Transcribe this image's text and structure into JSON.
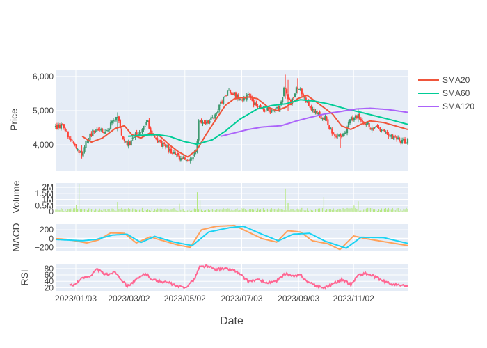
{
  "chart_data": {
    "type": "candlestick",
    "xlabel": "Date",
    "x_range": [
      "2022-12-12",
      "2023-12-31"
    ],
    "x_ticks": [
      {
        "date": "2023-01-03",
        "label": "2023/01/03"
      },
      {
        "date": "2023-03-02",
        "label": "2023/03/02"
      },
      {
        "date": "2023-05-02",
        "label": "2023/05/02"
      },
      {
        "date": "2023-07-03",
        "label": "2023/07/03"
      },
      {
        "date": "2023-09-03",
        "label": "2023/09/03"
      },
      {
        "date": "2023-11-02",
        "label": "2023/11/02"
      }
    ],
    "colors": {
      "up": "#3d9970",
      "down": "#ff4136",
      "sma20": "#ef553b",
      "sma60": "#00cc96",
      "sma120": "#ab63fa",
      "volume": "#b6e880",
      "macd": "#ffa15a",
      "signal": "#19d3f3",
      "rsi": "#ff6692",
      "plot_bg": "#e5ecf6"
    },
    "legend": {
      "position": "top-right",
      "entries": [
        {
          "name": "SMA20",
          "color": "#ef553b"
        },
        {
          "name": "SMA60",
          "color": "#00cc96"
        },
        {
          "name": "SMA120",
          "color": "#ab63fa"
        }
      ]
    },
    "panels": {
      "price": {
        "ylabel": "Price",
        "ylim": [
          3250,
          6200
        ],
        "y_ticks": [
          {
            "v": 4000,
            "label": "4,000"
          },
          {
            "v": 5000,
            "label": "5,000"
          },
          {
            "v": 6000,
            "label": "6,000"
          }
        ],
        "close_anchors": [
          [
            "2022-12-12",
            4500
          ],
          [
            "2022-12-20",
            4600
          ],
          [
            "2022-12-27",
            4150
          ],
          [
            "2023-01-03",
            4000
          ],
          [
            "2023-01-10",
            3680
          ],
          [
            "2023-01-15",
            4150
          ],
          [
            "2023-01-25",
            4500
          ],
          [
            "2023-02-05",
            4400
          ],
          [
            "2023-02-12",
            4650
          ],
          [
            "2023-02-17",
            4900
          ],
          [
            "2023-02-22",
            4350
          ],
          [
            "2023-02-28",
            3950
          ],
          [
            "2023-03-08",
            4250
          ],
          [
            "2023-03-18",
            4450
          ],
          [
            "2023-03-22",
            4700
          ],
          [
            "2023-03-28",
            4250
          ],
          [
            "2023-04-05",
            4050
          ],
          [
            "2023-04-15",
            3850
          ],
          [
            "2023-04-25",
            3650
          ],
          [
            "2023-05-02",
            3550
          ],
          [
            "2023-05-08",
            3600
          ],
          [
            "2023-05-15",
            3850
          ],
          [
            "2023-05-17",
            4700
          ],
          [
            "2023-05-25",
            4650
          ],
          [
            "2023-06-02",
            4800
          ],
          [
            "2023-06-10",
            5200
          ],
          [
            "2023-06-20",
            5600
          ],
          [
            "2023-06-28",
            5400
          ],
          [
            "2023-07-05",
            5350
          ],
          [
            "2023-07-10",
            5500
          ],
          [
            "2023-07-15",
            5250
          ],
          [
            "2023-07-25",
            5100
          ],
          [
            "2023-08-05",
            4950
          ],
          [
            "2023-08-12",
            5050
          ],
          [
            "2023-08-19",
            5700
          ],
          [
            "2023-08-25",
            5200
          ],
          [
            "2023-09-02",
            5700
          ],
          [
            "2023-09-10",
            5350
          ],
          [
            "2023-09-18",
            5000
          ],
          [
            "2023-09-26",
            4850
          ],
          [
            "2023-10-03",
            4750
          ],
          [
            "2023-10-10",
            4300
          ],
          [
            "2023-10-18",
            4250
          ],
          [
            "2023-10-24",
            4400
          ],
          [
            "2023-10-30",
            4750
          ],
          [
            "2023-11-07",
            4850
          ],
          [
            "2023-11-14",
            4650
          ],
          [
            "2023-11-22",
            4500
          ],
          [
            "2023-11-30",
            4450
          ],
          [
            "2023-12-10",
            4250
          ],
          [
            "2023-12-20",
            4150
          ],
          [
            "2023-12-31",
            4100
          ]
        ],
        "sma20": [
          [
            "2023-01-10",
            4250
          ],
          [
            "2023-01-20",
            4080
          ],
          [
            "2023-02-01",
            4200
          ],
          [
            "2023-02-15",
            4480
          ],
          [
            "2023-02-25",
            4560
          ],
          [
            "2023-03-05",
            4300
          ],
          [
            "2023-03-15",
            4200
          ],
          [
            "2023-03-25",
            4350
          ],
          [
            "2023-04-05",
            4250
          ],
          [
            "2023-04-15",
            4000
          ],
          [
            "2023-04-25",
            3800
          ],
          [
            "2023-05-05",
            3650
          ],
          [
            "2023-05-15",
            3850
          ],
          [
            "2023-05-25",
            4300
          ],
          [
            "2023-06-05",
            4750
          ],
          [
            "2023-06-15",
            5150
          ],
          [
            "2023-06-25",
            5350
          ],
          [
            "2023-07-10",
            5400
          ],
          [
            "2023-07-20",
            5350
          ],
          [
            "2023-08-01",
            5100
          ],
          [
            "2023-08-10",
            5000
          ],
          [
            "2023-08-20",
            5100
          ],
          [
            "2023-09-02",
            5350
          ],
          [
            "2023-09-12",
            5450
          ],
          [
            "2023-09-25",
            5200
          ],
          [
            "2023-10-10",
            4900
          ],
          [
            "2023-10-20",
            4550
          ],
          [
            "2023-10-30",
            4450
          ],
          [
            "2023-11-10",
            4600
          ],
          [
            "2023-11-20",
            4700
          ],
          [
            "2023-12-05",
            4650
          ],
          [
            "2023-12-31",
            4450
          ]
        ],
        "sma60": [
          [
            "2023-03-01",
            4250
          ],
          [
            "2023-03-15",
            4280
          ],
          [
            "2023-04-01",
            4300
          ],
          [
            "2023-04-15",
            4250
          ],
          [
            "2023-05-01",
            4100
          ],
          [
            "2023-05-15",
            4020
          ],
          [
            "2023-06-01",
            4150
          ],
          [
            "2023-06-15",
            4400
          ],
          [
            "2023-07-01",
            4750
          ],
          [
            "2023-07-20",
            5050
          ],
          [
            "2023-08-05",
            5150
          ],
          [
            "2023-08-20",
            5200
          ],
          [
            "2023-09-05",
            5320
          ],
          [
            "2023-09-20",
            5280
          ],
          [
            "2023-10-05",
            5200
          ],
          [
            "2023-10-25",
            5050
          ],
          [
            "2023-11-10",
            4950
          ],
          [
            "2023-11-25",
            4850
          ],
          [
            "2023-12-10",
            4750
          ],
          [
            "2023-12-31",
            4600
          ]
        ],
        "sma120": [
          [
            "2023-06-10",
            4250
          ],
          [
            "2023-06-25",
            4350
          ],
          [
            "2023-07-10",
            4450
          ],
          [
            "2023-07-25",
            4520
          ],
          [
            "2023-08-15",
            4560
          ],
          [
            "2023-09-01",
            4700
          ],
          [
            "2023-09-15",
            4800
          ],
          [
            "2023-10-01",
            4900
          ],
          [
            "2023-10-20",
            4980
          ],
          [
            "2023-11-05",
            5050
          ],
          [
            "2023-11-20",
            5070
          ],
          [
            "2023-12-10",
            5030
          ],
          [
            "2023-12-31",
            4950
          ]
        ],
        "spikes": [
          {
            "date": "2023-01-10",
            "high": 4000,
            "low": 3600
          },
          {
            "date": "2023-02-17",
            "high": 4950,
            "low": 4400
          },
          {
            "date": "2023-05-17",
            "high": 4750,
            "low": 4050
          },
          {
            "date": "2023-08-19",
            "high": 6050,
            "low": 5350
          },
          {
            "date": "2023-08-23",
            "high": 5900,
            "low": 5000
          },
          {
            "date": "2023-09-02",
            "high": 5950,
            "low": 5500
          },
          {
            "date": "2023-10-18",
            "high": 4350,
            "low": 3900
          },
          {
            "date": "2023-11-07",
            "high": 5050,
            "low": 4650
          }
        ]
      },
      "volume": {
        "ylabel": "Volume",
        "ylim": [
          0,
          2350000
        ],
        "y_ticks": [
          {
            "v": 0,
            "label": "0"
          },
          {
            "v": 500000,
            "label": "0.5M"
          },
          {
            "v": 1000000,
            "label": "1M"
          },
          {
            "v": 1500000,
            "label": "1.5M"
          },
          {
            "v": 2000000,
            "label": "2M"
          }
        ],
        "baseline": [
          50000,
          300000
        ],
        "spikes": [
          {
            "date": "2023-01-07",
            "value": 2300000
          },
          {
            "date": "2023-01-04",
            "value": 550000
          },
          {
            "date": "2023-02-18",
            "value": 800000
          },
          {
            "date": "2023-05-16",
            "value": 1600000
          },
          {
            "date": "2023-05-18",
            "value": 900000
          },
          {
            "date": "2023-04-26",
            "value": 650000
          },
          {
            "date": "2023-08-19",
            "value": 1900000
          },
          {
            "date": "2023-08-22",
            "value": 700000
          },
          {
            "date": "2023-09-30",
            "value": 1200000
          },
          {
            "date": "2023-11-07",
            "value": 850000
          },
          {
            "date": "2023-11-03",
            "value": 500000
          }
        ]
      },
      "macd": {
        "ylabel": "MACD",
        "ylim": [
          -290,
          330
        ],
        "y_ticks": [
          {
            "v": -200,
            "label": "−200"
          },
          {
            "v": 0,
            "label": "0"
          },
          {
            "v": 200,
            "label": "200"
          }
        ],
        "macd_line": [
          [
            "2022-12-12",
            0
          ],
          [
            "2022-12-25",
            -20
          ],
          [
            "2023-01-15",
            -100
          ],
          [
            "2023-01-28",
            -30
          ],
          [
            "2023-02-10",
            130
          ],
          [
            "2023-02-25",
            120
          ],
          [
            "2023-03-10",
            -100
          ],
          [
            "2023-03-25",
            40
          ],
          [
            "2023-04-10",
            -60
          ],
          [
            "2023-04-25",
            -150
          ],
          [
            "2023-05-08",
            -200
          ],
          [
            "2023-05-20",
            200
          ],
          [
            "2023-06-05",
            280
          ],
          [
            "2023-06-25",
            300
          ],
          [
            "2023-07-10",
            150
          ],
          [
            "2023-07-25",
            0
          ],
          [
            "2023-08-10",
            -80
          ],
          [
            "2023-08-22",
            180
          ],
          [
            "2023-09-05",
            150
          ],
          [
            "2023-09-18",
            -50
          ],
          [
            "2023-10-05",
            -120
          ],
          [
            "2023-10-18",
            -250
          ],
          [
            "2023-11-02",
            60
          ],
          [
            "2023-11-15",
            0
          ],
          [
            "2023-12-05",
            -70
          ],
          [
            "2023-12-31",
            -160
          ]
        ],
        "signal_line": [
          [
            "2022-12-12",
            -20
          ],
          [
            "2023-01-10",
            -50
          ],
          [
            "2023-01-25",
            -20
          ],
          [
            "2023-02-12",
            80
          ],
          [
            "2023-02-28",
            100
          ],
          [
            "2023-03-15",
            -90
          ],
          [
            "2023-03-30",
            50
          ],
          [
            "2023-04-20",
            -80
          ],
          [
            "2023-05-10",
            -160
          ],
          [
            "2023-05-28",
            150
          ],
          [
            "2023-06-20",
            250
          ],
          [
            "2023-07-05",
            280
          ],
          [
            "2023-07-25",
            100
          ],
          [
            "2023-08-12",
            -50
          ],
          [
            "2023-08-28",
            100
          ],
          [
            "2023-09-15",
            120
          ],
          [
            "2023-10-02",
            -60
          ],
          [
            "2023-10-25",
            -220
          ],
          [
            "2023-11-10",
            30
          ],
          [
            "2023-12-05",
            20
          ],
          [
            "2023-12-31",
            -110
          ]
        ]
      },
      "rsi": {
        "ylabel": "RSI",
        "ylim": [
          10,
          95
        ],
        "y_ticks": [
          {
            "v": 20,
            "label": "20"
          },
          {
            "v": 40,
            "label": "40"
          },
          {
            "v": 60,
            "label": "60"
          },
          {
            "v": 80,
            "label": "80"
          }
        ],
        "rsi_anchors": [
          [
            "2022-12-27",
            30
          ],
          [
            "2022-12-30",
            25
          ],
          [
            "2023-01-10",
            50
          ],
          [
            "2023-01-20",
            60
          ],
          [
            "2023-01-26",
            78
          ],
          [
            "2023-02-05",
            60
          ],
          [
            "2023-02-15",
            70
          ],
          [
            "2023-02-22",
            45
          ],
          [
            "2023-02-28",
            25
          ],
          [
            "2023-03-10",
            45
          ],
          [
            "2023-03-20",
            65
          ],
          [
            "2023-03-28",
            45
          ],
          [
            "2023-04-05",
            40
          ],
          [
            "2023-04-15",
            35
          ],
          [
            "2023-04-22",
            25
          ],
          [
            "2023-05-02",
            20
          ],
          [
            "2023-05-12",
            45
          ],
          [
            "2023-05-18",
            85
          ],
          [
            "2023-05-25",
            88
          ],
          [
            "2023-06-05",
            78
          ],
          [
            "2023-06-15",
            80
          ],
          [
            "2023-06-25",
            75
          ],
          [
            "2023-07-02",
            60
          ],
          [
            "2023-07-10",
            40
          ],
          [
            "2023-07-20",
            45
          ],
          [
            "2023-07-30",
            35
          ],
          [
            "2023-08-10",
            40
          ],
          [
            "2023-08-20",
            65
          ],
          [
            "2023-08-28",
            55
          ],
          [
            "2023-09-05",
            60
          ],
          [
            "2023-09-12",
            40
          ],
          [
            "2023-09-22",
            25
          ],
          [
            "2023-10-02",
            20
          ],
          [
            "2023-10-12",
            35
          ],
          [
            "2023-10-20",
            45
          ],
          [
            "2023-10-30",
            30
          ],
          [
            "2023-11-07",
            60
          ],
          [
            "2023-11-15",
            65
          ],
          [
            "2023-11-25",
            55
          ],
          [
            "2023-12-05",
            40
          ],
          [
            "2023-12-15",
            30
          ],
          [
            "2023-12-31",
            25
          ]
        ]
      }
    }
  }
}
